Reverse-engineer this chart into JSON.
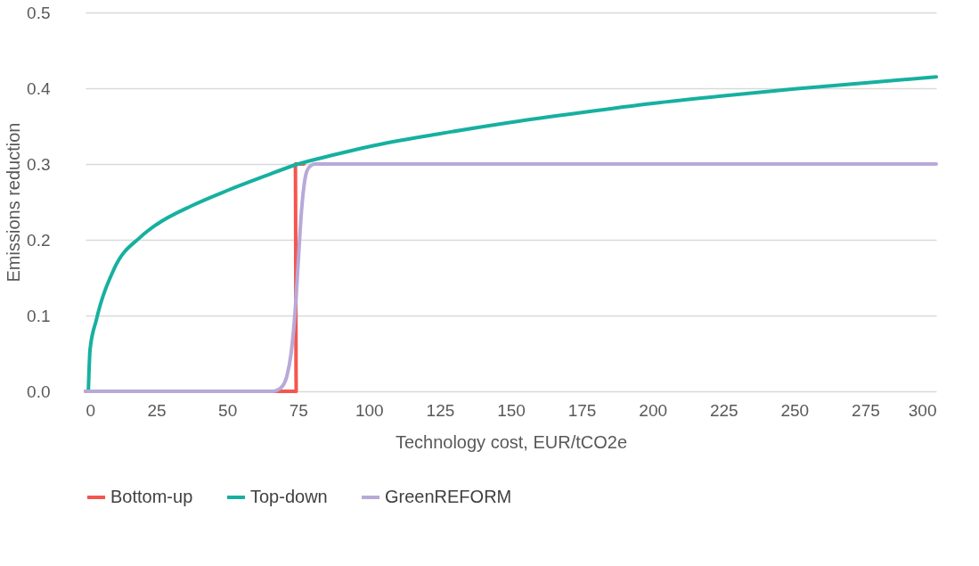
{
  "chart_data": {
    "type": "line",
    "xlabel": "Technology cost, EUR/tCO2e",
    "ylabel": "Emissions reduction",
    "xlim": [
      0,
      300
    ],
    "xticks": [
      0,
      25,
      50,
      75,
      100,
      125,
      150,
      175,
      200,
      225,
      250,
      275,
      300
    ],
    "ylim": [
      0,
      0.5
    ],
    "yticks": [
      {
        "value": 0,
        "label": "0.0"
      },
      0.1,
      0.2,
      0.3,
      0.4,
      0.5
    ],
    "grid": "y",
    "legend": "bottom",
    "marker": "none",
    "line_style": "solid",
    "series": [
      {
        "name": "Bottom-up",
        "color": "#f4564f",
        "x": [
          0,
          74.3,
          74,
          77
        ],
        "values": [
          0,
          0,
          0.3,
          0.3
        ]
      },
      {
        "name": "Top-down",
        "color": "#16b0a0",
        "x": [
          1,
          1.6,
          3.8,
          10,
          19.5,
          25,
          37.5,
          50,
          62.5,
          75,
          87.5,
          100,
          125,
          150,
          175,
          200,
          225,
          250,
          275,
          300
        ],
        "values": [
          0,
          0.055,
          0.094,
          0.161,
          0.204,
          0.22,
          0.245,
          0.265,
          0.283,
          0.3,
          0.312,
          0.323,
          0.34,
          0.355,
          0.368,
          0.38,
          0.39,
          0.399,
          0.407,
          0.415
        ]
      },
      {
        "name": "GreenREFORM",
        "color": "#b8a9d9",
        "x": [
          0,
          66,
          69,
          71,
          72.5,
          74,
          75,
          76,
          77,
          78,
          79.5,
          81,
          300
        ],
        "values": [
          0,
          0,
          0.005,
          0.02,
          0.05,
          0.11,
          0.17,
          0.23,
          0.27,
          0.29,
          0.298,
          0.3,
          0.3
        ]
      }
    ]
  }
}
